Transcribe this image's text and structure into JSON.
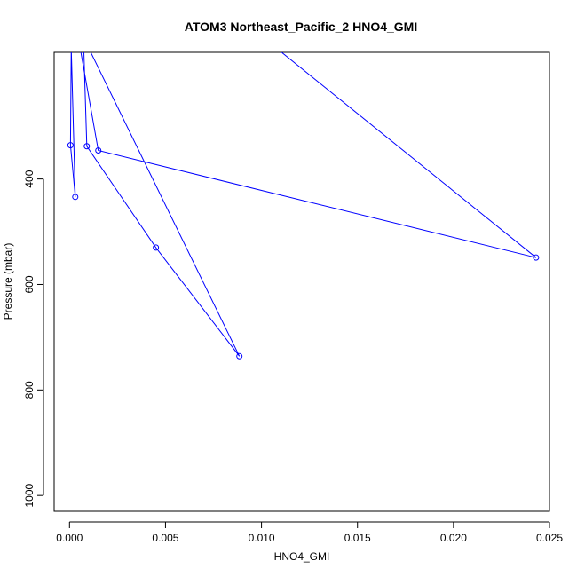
{
  "chart_data": {
    "type": "line",
    "title": "ATOM3 Northeast_Pacific_2 HNO4_GMI",
    "xlabel": "HNO4_GMI",
    "ylabel": "Pressure (mbar)",
    "xlim": [
      -0.0008,
      0.025
    ],
    "ylim": [
      1030,
      160
    ],
    "y_reversed": true,
    "x_ticks": [
      0.0,
      0.005,
      0.01,
      0.015,
      0.02,
      0.025
    ],
    "x_tick_labels": [
      "0.000",
      "0.005",
      "0.010",
      "0.015",
      "0.020",
      "0.025"
    ],
    "y_ticks": [
      400,
      600,
      800,
      1000
    ],
    "y_tick_labels": [
      "400",
      "600",
      "800",
      "1000"
    ],
    "series": [
      {
        "color": "#0000ff",
        "marker": "open-circle",
        "points": [
          {
            "x": 0.0001,
            "y": 100
          },
          {
            "x": 5e-05,
            "y": 336
          },
          {
            "x": 0.0003,
            "y": 434
          },
          {
            "x": 5e-05,
            "y": 100
          },
          {
            "x": 0.0007,
            "y": 100
          },
          {
            "x": 0.0009,
            "y": 338
          },
          {
            "x": 0.0045,
            "y": 530
          },
          {
            "x": 0.00885,
            "y": 736
          },
          {
            "x": 0.0003,
            "y": 100
          },
          {
            "x": 0.0015,
            "y": 346
          },
          {
            "x": 0.0243,
            "y": 549
          },
          {
            "x": 0.009,
            "y": 100
          }
        ]
      }
    ]
  }
}
